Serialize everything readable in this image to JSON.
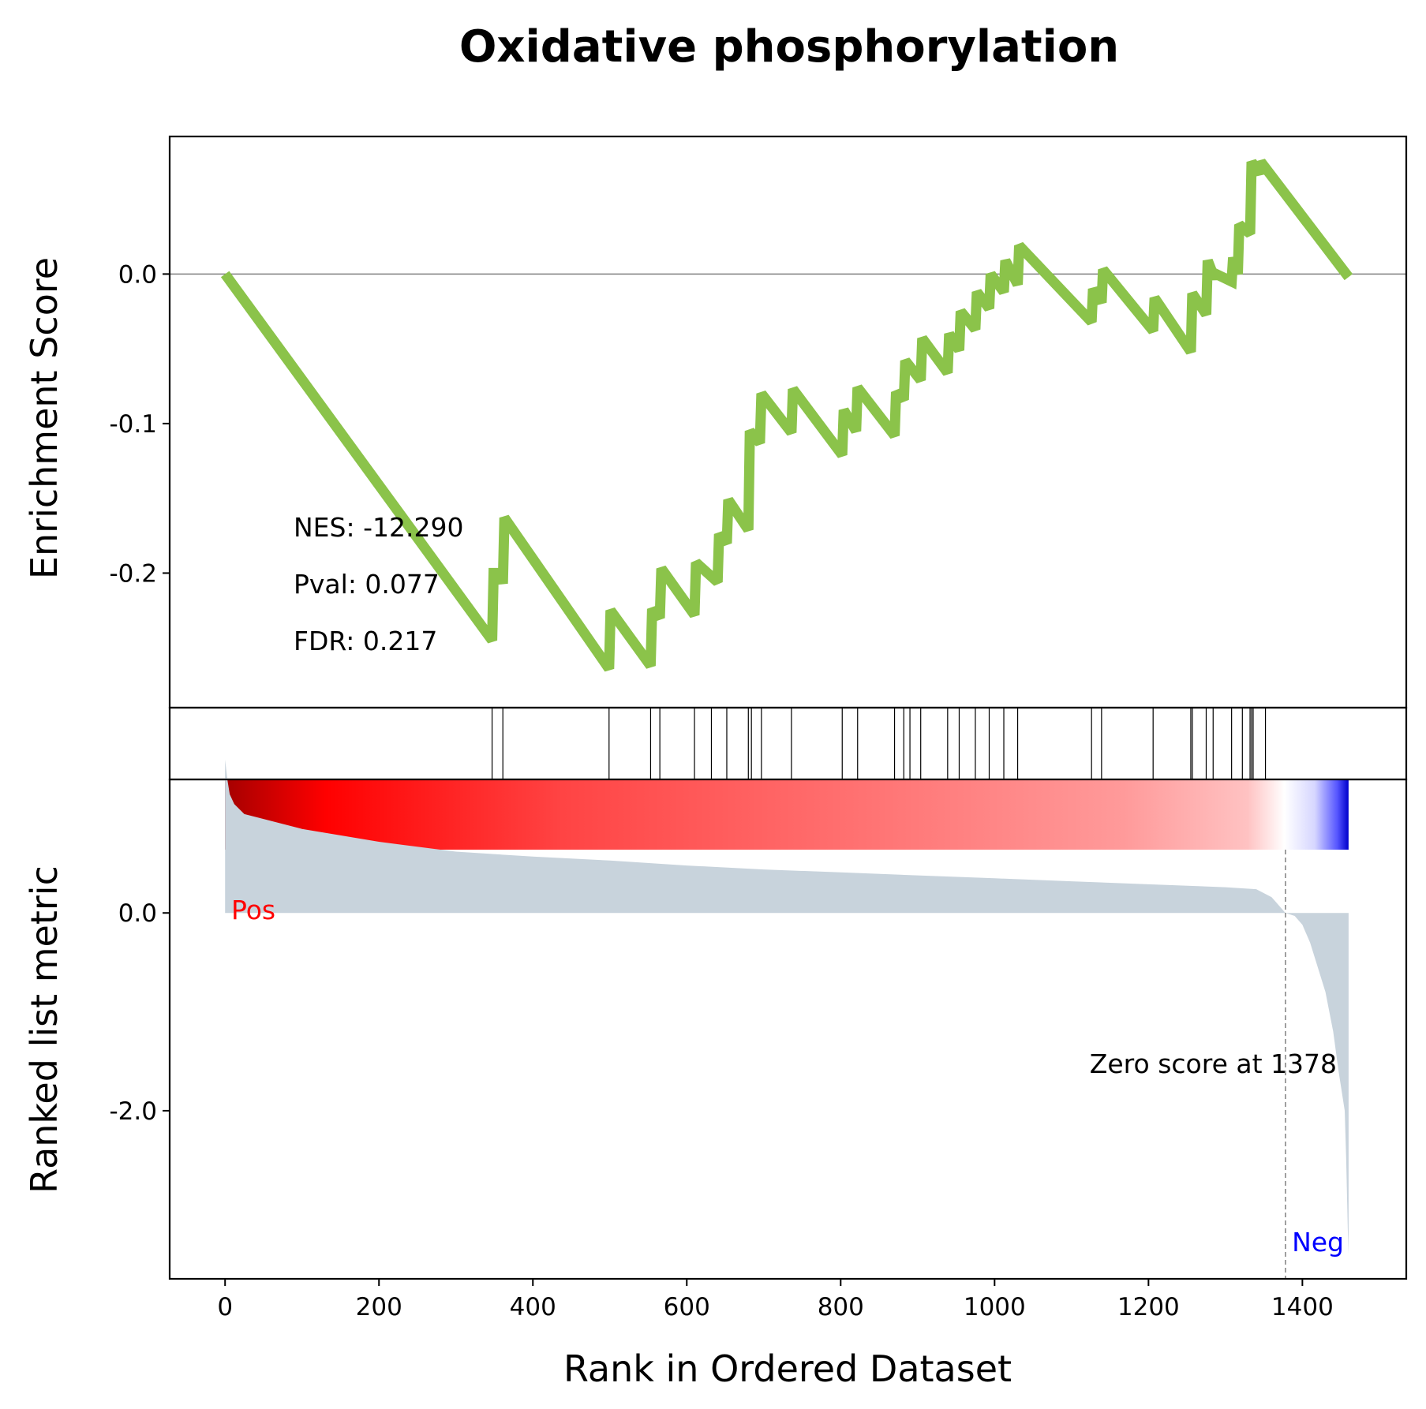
{
  "chart_data": {
    "type": "line",
    "title": "Oxidative phosphorylation",
    "xlabel": "Rank in Ordered Dataset",
    "xlim": [
      -72,
      1535
    ],
    "x_ticks": [
      "0",
      "200",
      "400",
      "600",
      "800",
      "1000",
      "1200",
      "1400"
    ],
    "x_tick_values": [
      0,
      200,
      400,
      600,
      800,
      1000,
      1200,
      1400
    ],
    "enrichment": {
      "ylabel": "Enrichment Score",
      "ylim": [
        -0.29,
        0.092
      ],
      "y_ticks": [
        "0.0",
        "-0.1",
        "-0.2"
      ],
      "y_tick_values": [
        0.0,
        -0.1,
        -0.2
      ],
      "line_color": "#8bc34a",
      "points": [
        [
          0,
          0.0
        ],
        [
          347,
          -0.245
        ],
        [
          349,
          -0.2
        ],
        [
          358,
          -0.2
        ],
        [
          361,
          -0.207
        ],
        [
          363,
          -0.163
        ],
        [
          499,
          -0.264
        ],
        [
          501,
          -0.225
        ],
        [
          553,
          -0.262
        ],
        [
          555,
          -0.224
        ],
        [
          565,
          -0.23
        ],
        [
          567,
          -0.197
        ],
        [
          610,
          -0.228
        ],
        [
          612,
          -0.193
        ],
        [
          640,
          -0.206
        ],
        [
          642,
          -0.174
        ],
        [
          652,
          -0.18
        ],
        [
          654,
          -0.151
        ],
        [
          680,
          -0.171
        ],
        [
          682,
          -0.105
        ],
        [
          695,
          -0.113
        ],
        [
          697,
          -0.08
        ],
        [
          736,
          -0.106
        ],
        [
          738,
          -0.077
        ],
        [
          802,
          -0.121
        ],
        [
          804,
          -0.091
        ],
        [
          820,
          -0.105
        ],
        [
          822,
          -0.076
        ],
        [
          870,
          -0.108
        ],
        [
          872,
          -0.079
        ],
        [
          882,
          -0.084
        ],
        [
          884,
          -0.058
        ],
        [
          904,
          -0.071
        ],
        [
          906,
          -0.043
        ],
        [
          939,
          -0.066
        ],
        [
          941,
          -0.04
        ],
        [
          954,
          -0.051
        ],
        [
          956,
          -0.025
        ],
        [
          975,
          -0.037
        ],
        [
          977,
          -0.012
        ],
        [
          993,
          -0.023
        ],
        [
          995,
          0.0
        ],
        [
          1012,
          -0.012
        ],
        [
          1014,
          0.009
        ],
        [
          1030,
          -0.007
        ],
        [
          1032,
          0.019
        ],
        [
          1126,
          -0.032
        ],
        [
          1128,
          -0.01
        ],
        [
          1139,
          -0.019
        ],
        [
          1141,
          0.003
        ],
        [
          1206,
          -0.038
        ],
        [
          1208,
          -0.016
        ],
        [
          1255,
          -0.052
        ],
        [
          1257,
          -0.013
        ],
        [
          1275,
          -0.027
        ],
        [
          1277,
          0.009
        ],
        [
          1286,
          -0.003
        ],
        [
          1288,
          0.0
        ],
        [
          1308,
          -0.005
        ],
        [
          1310,
          0.011
        ],
        [
          1316,
          0.0
        ],
        [
          1318,
          0.033
        ],
        [
          1332,
          0.027
        ],
        [
          1334,
          0.075
        ],
        [
          1344,
          0.067
        ],
        [
          1346,
          0.075
        ],
        [
          1460,
          -0.002
        ]
      ]
    },
    "hits": {
      "positions": [
        347,
        361,
        499,
        553,
        565,
        610,
        632,
        652,
        680,
        684,
        697,
        736,
        802,
        822,
        870,
        882,
        890,
        904,
        939,
        954,
        975,
        993,
        1012,
        1030,
        1126,
        1139,
        1206,
        1255,
        1257,
        1275,
        1284,
        1308,
        1322,
        1332,
        1334,
        1336,
        1352
      ]
    },
    "ranked_metric": {
      "ylabel": "Ranked list metric",
      "ylim": [
        -3.7,
        1.35
      ],
      "y_ticks": [
        "0.0",
        "-2.0"
      ],
      "y_tick_values": [
        0.0,
        -2.0
      ],
      "fill_color": "#c8d3dc",
      "n_genes": 1460,
      "zero_cross": 1378,
      "pos_label": "Pos",
      "neg_label": "Neg",
      "pos_color": "#ff0000",
      "neg_color": "#0000ff",
      "zero_label": "Zero score at 1378",
      "curve": [
        [
          0,
          1.55
        ],
        [
          3,
          1.35
        ],
        [
          6,
          1.2
        ],
        [
          12,
          1.1
        ],
        [
          25,
          1.0
        ],
        [
          50,
          0.95
        ],
        [
          100,
          0.85
        ],
        [
          200,
          0.72
        ],
        [
          300,
          0.62
        ],
        [
          400,
          0.57
        ],
        [
          500,
          0.53
        ],
        [
          600,
          0.48
        ],
        [
          700,
          0.44
        ],
        [
          800,
          0.41
        ],
        [
          900,
          0.38
        ],
        [
          1000,
          0.35
        ],
        [
          1100,
          0.32
        ],
        [
          1200,
          0.29
        ],
        [
          1300,
          0.26
        ],
        [
          1340,
          0.24
        ],
        [
          1360,
          0.16
        ],
        [
          1378,
          0.0
        ],
        [
          1390,
          -0.03
        ],
        [
          1400,
          -0.12
        ],
        [
          1410,
          -0.3
        ],
        [
          1420,
          -0.55
        ],
        [
          1430,
          -0.8
        ],
        [
          1440,
          -1.2
        ],
        [
          1447,
          -1.6
        ],
        [
          1451,
          -1.8
        ],
        [
          1455,
          -2.0
        ],
        [
          1457,
          -2.5
        ],
        [
          1459,
          -3.2
        ],
        [
          1460,
          -3.45
        ]
      ]
    },
    "stats": {
      "nes": "NES: -12.290",
      "pval": "Pval: 0.077",
      "fdr": "FDR: 0.217"
    }
  }
}
